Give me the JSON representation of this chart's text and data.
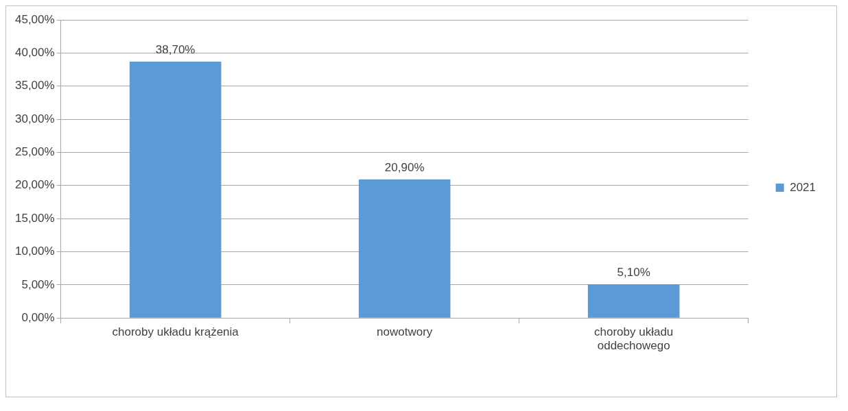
{
  "chart_data": {
    "type": "bar",
    "categories": [
      "choroby układu krążenia",
      "nowotwory",
      "choroby układu oddechowego"
    ],
    "series": [
      {
        "name": "2021",
        "color": "#5b9bd5",
        "values": [
          38.7,
          20.9,
          5.1
        ],
        "value_labels": [
          "38,70%",
          "20,90%",
          "5,10%"
        ]
      }
    ],
    "ylim": [
      0,
      45
    ],
    "yticks": [
      {
        "value": 0,
        "label": "0,00%"
      },
      {
        "value": 5,
        "label": "5,00%"
      },
      {
        "value": 10,
        "label": "10,00%"
      },
      {
        "value": 15,
        "label": "15,00%"
      },
      {
        "value": 20,
        "label": "20,00%"
      },
      {
        "value": 25,
        "label": "25,00%"
      },
      {
        "value": 30,
        "label": "30,00%"
      },
      {
        "value": 35,
        "label": "35,00%"
      },
      {
        "value": 40,
        "label": "40,00%"
      },
      {
        "value": 45,
        "label": "45,00%"
      }
    ],
    "grid": "y",
    "legend": "right"
  }
}
